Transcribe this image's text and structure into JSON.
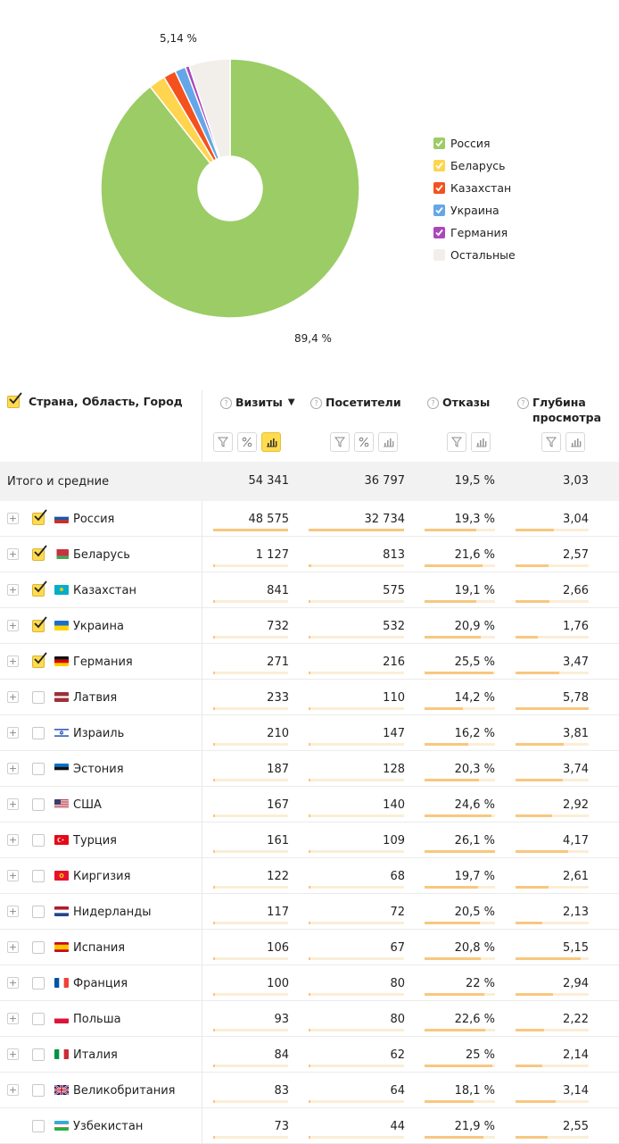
{
  "chart_data": {
    "type": "pie",
    "donut": true,
    "slices": [
      {
        "name": "Россия",
        "value": 89.4,
        "color": "#9ccc65"
      },
      {
        "name": "Беларусь",
        "value": 2.07,
        "color": "#ffd54f"
      },
      {
        "name": "Казахстан",
        "value": 1.55,
        "color": "#f4511e"
      },
      {
        "name": "Украина",
        "value": 1.35,
        "color": "#64a6e8"
      },
      {
        "name": "Германия",
        "value": 0.5,
        "color": "#ab47bc"
      },
      {
        "name": "Остальные",
        "value": 5.14,
        "color": "#f2efeb"
      }
    ],
    "labels": {
      "others": "5,14 %",
      "russia": "89,4 %"
    },
    "legend_position": "right"
  },
  "table": {
    "dimension_header": "Страна, Область, Город",
    "headers": {
      "visits": "Визиты",
      "visitors": "Посетители",
      "bounces": "Отказы",
      "depth": "Глубина просмотра"
    },
    "sort_arrow": "▼",
    "help_glyph": "?",
    "total": {
      "label": "Итого и средние",
      "visits": "54 341",
      "visitors": "36 797",
      "bounces": "19,5 %",
      "depth": "3,03"
    },
    "rows": [
      {
        "country": "Россия",
        "flag": "ru",
        "checked": true,
        "expandable": true,
        "visits": "48 575",
        "visitors": "32 734",
        "bounces": "19,3 %",
        "depth": "3,04",
        "v": 48575,
        "u": 32734,
        "b": 19.3,
        "d": 3.04
      },
      {
        "country": "Беларусь",
        "flag": "by",
        "checked": true,
        "expandable": true,
        "visits": "1 127",
        "visitors": "813",
        "bounces": "21,6 %",
        "depth": "2,57",
        "v": 1127,
        "u": 813,
        "b": 21.6,
        "d": 2.57
      },
      {
        "country": "Казахстан",
        "flag": "kz",
        "checked": true,
        "expandable": true,
        "visits": "841",
        "visitors": "575",
        "bounces": "19,1 %",
        "depth": "2,66",
        "v": 841,
        "u": 575,
        "b": 19.1,
        "d": 2.66
      },
      {
        "country": "Украина",
        "flag": "ua",
        "checked": true,
        "expandable": true,
        "visits": "732",
        "visitors": "532",
        "bounces": "20,9 %",
        "depth": "1,76",
        "v": 732,
        "u": 532,
        "b": 20.9,
        "d": 1.76
      },
      {
        "country": "Германия",
        "flag": "de",
        "checked": true,
        "expandable": true,
        "visits": "271",
        "visitors": "216",
        "bounces": "25,5 %",
        "depth": "3,47",
        "v": 271,
        "u": 216,
        "b": 25.5,
        "d": 3.47
      },
      {
        "country": "Латвия",
        "flag": "lv",
        "checked": false,
        "expandable": true,
        "visits": "233",
        "visitors": "110",
        "bounces": "14,2 %",
        "depth": "5,78",
        "v": 233,
        "u": 110,
        "b": 14.2,
        "d": 5.78
      },
      {
        "country": "Израиль",
        "flag": "il",
        "checked": false,
        "expandable": true,
        "visits": "210",
        "visitors": "147",
        "bounces": "16,2 %",
        "depth": "3,81",
        "v": 210,
        "u": 147,
        "b": 16.2,
        "d": 3.81
      },
      {
        "country": "Эстония",
        "flag": "ee",
        "checked": false,
        "expandable": true,
        "visits": "187",
        "visitors": "128",
        "bounces": "20,3 %",
        "depth": "3,74",
        "v": 187,
        "u": 128,
        "b": 20.3,
        "d": 3.74
      },
      {
        "country": "США",
        "flag": "us",
        "checked": false,
        "expandable": true,
        "visits": "167",
        "visitors": "140",
        "bounces": "24,6 %",
        "depth": "2,92",
        "v": 167,
        "u": 140,
        "b": 24.6,
        "d": 2.92
      },
      {
        "country": "Турция",
        "flag": "tr",
        "checked": false,
        "expandable": true,
        "visits": "161",
        "visitors": "109",
        "bounces": "26,1 %",
        "depth": "4,17",
        "v": 161,
        "u": 109,
        "b": 26.1,
        "d": 4.17
      },
      {
        "country": "Киргизия",
        "flag": "kg",
        "checked": false,
        "expandable": true,
        "visits": "122",
        "visitors": "68",
        "bounces": "19,7 %",
        "depth": "2,61",
        "v": 122,
        "u": 68,
        "b": 19.7,
        "d": 2.61
      },
      {
        "country": "Нидерланды",
        "flag": "nl",
        "checked": false,
        "expandable": true,
        "visits": "117",
        "visitors": "72",
        "bounces": "20,5 %",
        "depth": "2,13",
        "v": 117,
        "u": 72,
        "b": 20.5,
        "d": 2.13
      },
      {
        "country": "Испания",
        "flag": "es",
        "checked": false,
        "expandable": true,
        "visits": "106",
        "visitors": "67",
        "bounces": "20,8 %",
        "depth": "5,15",
        "v": 106,
        "u": 67,
        "b": 20.8,
        "d": 5.15
      },
      {
        "country": "Франция",
        "flag": "fr",
        "checked": false,
        "expandable": true,
        "visits": "100",
        "visitors": "80",
        "bounces": "22 %",
        "depth": "2,94",
        "v": 100,
        "u": 80,
        "b": 22,
        "d": 2.94
      },
      {
        "country": "Польша",
        "flag": "pl",
        "checked": false,
        "expandable": true,
        "visits": "93",
        "visitors": "80",
        "bounces": "22,6 %",
        "depth": "2,22",
        "v": 93,
        "u": 80,
        "b": 22.6,
        "d": 2.22
      },
      {
        "country": "Италия",
        "flag": "it",
        "checked": false,
        "expandable": true,
        "visits": "84",
        "visitors": "62",
        "bounces": "25 %",
        "depth": "2,14",
        "v": 84,
        "u": 62,
        "b": 25,
        "d": 2.14
      },
      {
        "country": "Великобритания",
        "flag": "gb",
        "checked": false,
        "expandable": true,
        "visits": "83",
        "visitors": "64",
        "bounces": "18,1 %",
        "depth": "3,14",
        "v": 83,
        "u": 64,
        "b": 18.1,
        "d": 3.14
      },
      {
        "country": "Узбекистан",
        "flag": "uz",
        "checked": false,
        "expandable": false,
        "visits": "73",
        "visitors": "44",
        "bounces": "21,9 %",
        "depth": "2,55",
        "v": 73,
        "u": 44,
        "b": 21.9,
        "d": 2.55
      }
    ]
  }
}
